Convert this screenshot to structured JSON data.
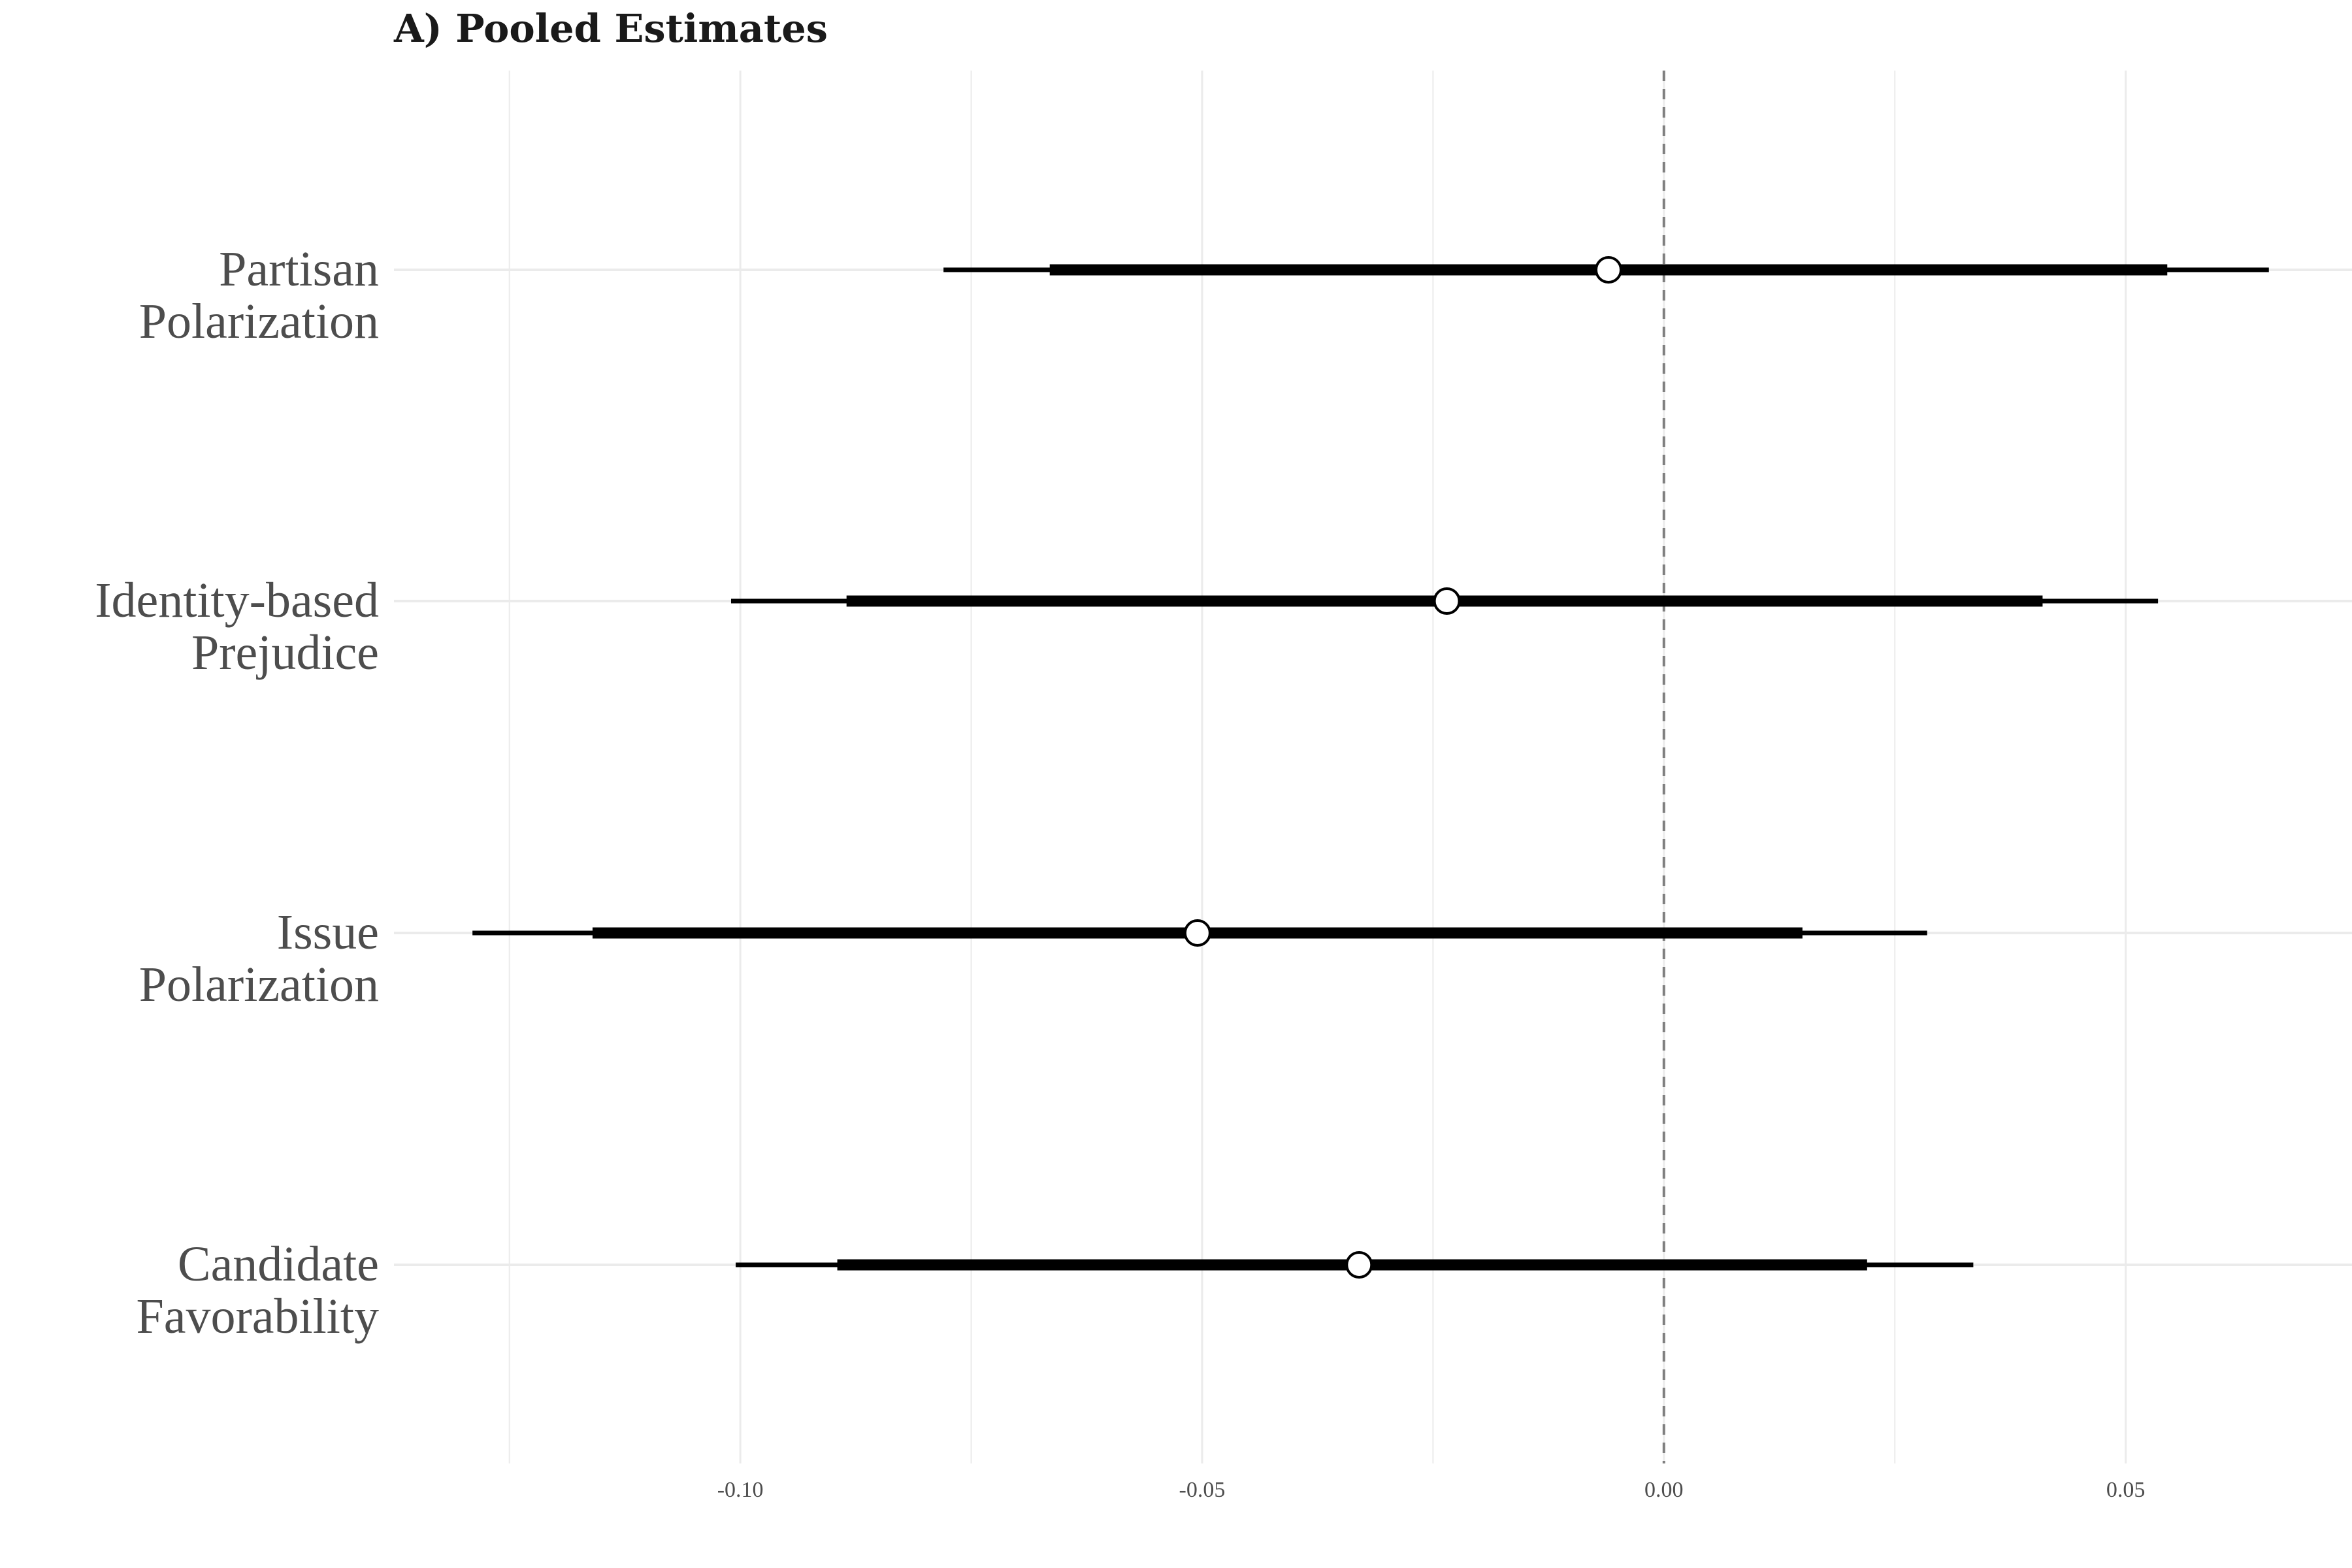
{
  "chart_data": {
    "type": "forest",
    "title": "A) Pooled Estimates",
    "xlabel": "",
    "ylabel": "",
    "xlim": [
      -0.1375,
      0.0745
    ],
    "x_ticks": [
      -0.1,
      -0.05,
      0.0,
      0.05
    ],
    "x_tick_labels": [
      "-0.10",
      "-0.05",
      "0.00",
      "0.05"
    ],
    "reference_line": 0.0,
    "grid": true,
    "categories": [
      [
        "Partisan",
        "Polarization"
      ],
      [
        "Identity-based",
        "Prejudice"
      ],
      [
        "Issue",
        "Polarization"
      ],
      [
        "Candidate",
        "Favorability"
      ]
    ],
    "series": [
      {
        "estimates": [
          -0.006,
          -0.0235,
          -0.0505,
          -0.033
        ],
        "inner_low": [
          -0.0665,
          -0.0885,
          -0.116,
          -0.0895
        ],
        "inner_high": [
          0.0545,
          0.041,
          0.015,
          0.022
        ],
        "outer_low": [
          -0.078,
          -0.101,
          -0.129,
          -0.1005
        ],
        "outer_high": [
          0.0655,
          0.0535,
          0.0285,
          0.0335
        ]
      }
    ],
    "colors": {
      "interval": "#000000",
      "point_fill": "#ffffff",
      "point_stroke": "#000000",
      "grid": "#ebebeb",
      "reference": "#7f7f7f"
    }
  }
}
